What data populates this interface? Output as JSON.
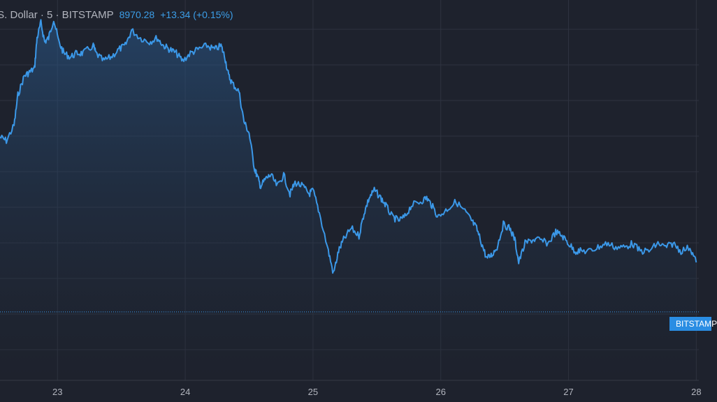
{
  "header": {
    "symbol": ".S. Dollar · 5 · BITSTAMP",
    "price": "8970.28",
    "change": "+13.34 (+0.15%)"
  },
  "price_badge": {
    "label": "BITSTAMP"
  },
  "colors": {
    "background": "#1e222d",
    "grid": "#2f3340",
    "line": "#3b98e8",
    "text": "#b2b5be",
    "badge": "#2a8de3"
  },
  "chart_data": {
    "type": "area",
    "title": "",
    "xlabel": "",
    "ylabel": "",
    "grid": true,
    "x_ticks": [
      "23",
      "24",
      "25",
      "26",
      "27",
      "28"
    ],
    "xlim": [
      22.55,
      28.02
    ],
    "reference_level": 0.82,
    "series": [
      {
        "values": [
          [
            22.55,
            0.36
          ],
          [
            22.6,
            0.37
          ],
          [
            22.66,
            0.33
          ],
          [
            22.69,
            0.25
          ],
          [
            22.74,
            0.2
          ],
          [
            22.78,
            0.19
          ],
          [
            22.82,
            0.18
          ],
          [
            22.84,
            0.1
          ],
          [
            22.87,
            0.06
          ],
          [
            22.9,
            0.11
          ],
          [
            22.93,
            0.1
          ],
          [
            22.97,
            0.05
          ],
          [
            23.01,
            0.11
          ],
          [
            23.05,
            0.14
          ],
          [
            23.1,
            0.15
          ],
          [
            23.15,
            0.14
          ],
          [
            23.2,
            0.14
          ],
          [
            23.28,
            0.12
          ],
          [
            23.3,
            0.14
          ],
          [
            23.36,
            0.16
          ],
          [
            23.42,
            0.15
          ],
          [
            23.48,
            0.13
          ],
          [
            23.53,
            0.12
          ],
          [
            23.58,
            0.08
          ],
          [
            23.65,
            0.1
          ],
          [
            23.72,
            0.11
          ],
          [
            23.78,
            0.1
          ],
          [
            23.83,
            0.12
          ],
          [
            23.88,
            0.13
          ],
          [
            23.93,
            0.14
          ],
          [
            23.98,
            0.16
          ],
          [
            24.04,
            0.14
          ],
          [
            24.1,
            0.13
          ],
          [
            24.17,
            0.12
          ],
          [
            24.23,
            0.13
          ],
          [
            24.28,
            0.12
          ],
          [
            24.31,
            0.15
          ],
          [
            24.34,
            0.2
          ],
          [
            24.37,
            0.22
          ],
          [
            24.42,
            0.24
          ],
          [
            24.46,
            0.32
          ],
          [
            24.5,
            0.35
          ],
          [
            24.54,
            0.44
          ],
          [
            24.56,
            0.46
          ],
          [
            24.59,
            0.49
          ],
          [
            24.63,
            0.47
          ],
          [
            24.67,
            0.46
          ],
          [
            24.72,
            0.49
          ],
          [
            24.77,
            0.46
          ],
          [
            24.82,
            0.51
          ],
          [
            24.86,
            0.48
          ],
          [
            24.92,
            0.49
          ],
          [
            24.97,
            0.51
          ],
          [
            25.0,
            0.5
          ],
          [
            25.05,
            0.56
          ],
          [
            25.12,
            0.66
          ],
          [
            25.16,
            0.72
          ],
          [
            25.2,
            0.66
          ],
          [
            25.24,
            0.63
          ],
          [
            25.3,
            0.6
          ],
          [
            25.36,
            0.62
          ],
          [
            25.4,
            0.56
          ],
          [
            25.44,
            0.52
          ],
          [
            25.48,
            0.5
          ],
          [
            25.53,
            0.52
          ],
          [
            25.57,
            0.54
          ],
          [
            25.62,
            0.57
          ],
          [
            25.67,
            0.58
          ],
          [
            25.72,
            0.57
          ],
          [
            25.77,
            0.54
          ],
          [
            25.84,
            0.53
          ],
          [
            25.89,
            0.52
          ],
          [
            25.93,
            0.54
          ],
          [
            25.98,
            0.57
          ],
          [
            26.05,
            0.55
          ],
          [
            26.12,
            0.53
          ],
          [
            26.2,
            0.56
          ],
          [
            26.24,
            0.58
          ],
          [
            26.28,
            0.6
          ],
          [
            26.32,
            0.64
          ],
          [
            26.36,
            0.68
          ],
          [
            26.4,
            0.67
          ],
          [
            26.44,
            0.65
          ],
          [
            26.49,
            0.59
          ],
          [
            26.54,
            0.6
          ],
          [
            26.58,
            0.63
          ],
          [
            26.61,
            0.69
          ],
          [
            26.66,
            0.64
          ],
          [
            26.72,
            0.63
          ],
          [
            26.77,
            0.63
          ],
          [
            26.84,
            0.64
          ],
          [
            26.9,
            0.61
          ],
          [
            26.95,
            0.62
          ],
          [
            27.0,
            0.64
          ],
          [
            27.05,
            0.66
          ],
          [
            27.1,
            0.66
          ],
          [
            27.17,
            0.66
          ],
          [
            27.23,
            0.65
          ],
          [
            27.3,
            0.64
          ],
          [
            27.37,
            0.65
          ],
          [
            27.44,
            0.65
          ],
          [
            27.5,
            0.64
          ],
          [
            27.56,
            0.66
          ],
          [
            27.63,
            0.66
          ],
          [
            27.7,
            0.64
          ],
          [
            27.76,
            0.65
          ],
          [
            27.82,
            0.64
          ],
          [
            27.88,
            0.66
          ],
          [
            27.95,
            0.65
          ],
          [
            28.0,
            0.69
          ]
        ]
      }
    ]
  }
}
